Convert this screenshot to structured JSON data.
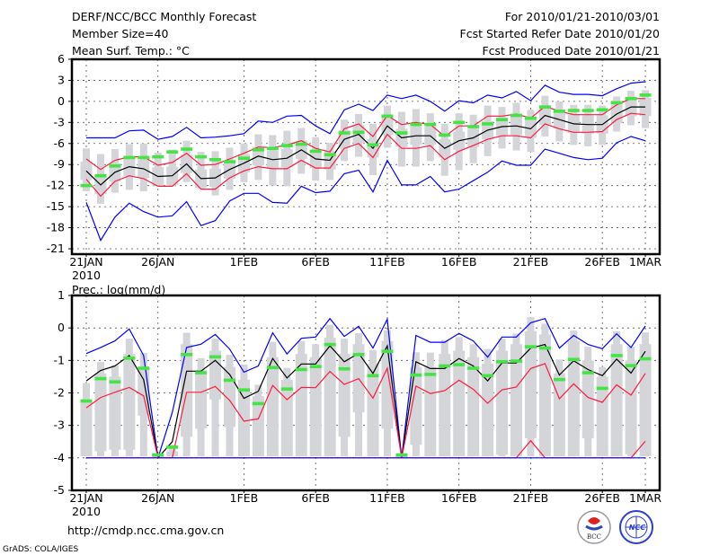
{
  "header": {
    "title": "DERF/NCC/BCC Monthly Forecast",
    "member_size": "Member Size=40",
    "variable": "Mean Surf. Temp.: °C",
    "period": "For 2010/01/21-2010/03/01",
    "started": "Fcst Started Refer Date 2010/01/20",
    "produced": "Fcst Produced Date 2010/01/21"
  },
  "footer": {
    "url": "http://cmdp.ncc.cma.gov.cn",
    "credit": "GrADS: COLA/IGES",
    "logos": [
      "BCC",
      "NCC"
    ]
  },
  "colors": {
    "max_min": "#0000ff",
    "spread": "#ff1a40",
    "mean": "#000000",
    "marker": "#44e444",
    "box": "#d3d5d8"
  },
  "chart_data": [
    {
      "type": "line",
      "title": "Mean Surf. Temp.: °C",
      "ylim": [
        -21,
        6
      ],
      "yticks": [
        "6",
        "3",
        "0",
        "-3",
        "-6",
        "-9",
        "-12",
        "-15",
        "-18",
        "-21"
      ],
      "ytick_values": [
        6,
        3,
        0,
        -3,
        -6,
        -9,
        -12,
        -15,
        -18,
        -21
      ],
      "xticks": [
        {
          "day": 0,
          "label": "21JAN"
        },
        {
          "day": 5,
          "label": "26JAN"
        },
        {
          "day": 11,
          "label": "1FEB"
        },
        {
          "day": 16,
          "label": "6FEB"
        },
        {
          "day": 21,
          "label": "11FEB"
        },
        {
          "day": 26,
          "label": "16FEB"
        },
        {
          "day": 31,
          "label": "21FEB"
        },
        {
          "day": 36,
          "label": "26FEB"
        },
        {
          "day": 39,
          "label": "1MAR"
        }
      ],
      "year_label": "2010",
      "grid": true,
      "series": [
        {
          "name": "max",
          "color": "#0000ff",
          "values": [
            -5.2,
            -5.2,
            -5.2,
            -4.2,
            -4.1,
            -5.4,
            -5.0,
            -3.7,
            -5.2,
            -5.1,
            -4.9,
            -4.6,
            -2.8,
            -3.0,
            -2.1,
            -2.0,
            -3.5,
            -4.6,
            -1.2,
            -0.4,
            -1.3,
            0.9,
            0.4,
            0.9,
            0.0,
            -1.4,
            0.1,
            -0.2,
            0.9,
            0.5,
            1.4,
            0.1,
            2.3,
            1.3,
            1.0,
            1.0,
            0.8,
            1.8,
            2.6,
            2.8
          ]
        },
        {
          "name": "upper",
          "color": "#ff1a40",
          "values": [
            -8.2,
            -9.7,
            -8.4,
            -7.9,
            -7.9,
            -9.1,
            -8.7,
            -7.4,
            -9.1,
            -9.0,
            -8.2,
            -7.4,
            -6.5,
            -6.6,
            -6.2,
            -5.6,
            -6.7,
            -7.2,
            -3.9,
            -3.2,
            -5.0,
            -2.0,
            -3.3,
            -3.0,
            -3.3,
            -5.0,
            -3.5,
            -3.5,
            -2.1,
            -2.1,
            -1.8,
            -2.4,
            -0.7,
            -1.4,
            -1.9,
            -1.9,
            -1.9,
            -0.5,
            0.4,
            0.4
          ]
        },
        {
          "name": "mean",
          "color": "#000000",
          "values": [
            -9.9,
            -11.9,
            -10.1,
            -9.3,
            -9.6,
            -10.7,
            -10.6,
            -8.9,
            -11.0,
            -10.9,
            -9.7,
            -8.8,
            -7.8,
            -8.3,
            -8.1,
            -6.9,
            -8.2,
            -8.4,
            -5.4,
            -4.7,
            -6.7,
            -3.5,
            -5.2,
            -4.9,
            -4.9,
            -6.7,
            -5.6,
            -5.2,
            -4.1,
            -3.6,
            -3.5,
            -3.9,
            -2.0,
            -2.6,
            -3.2,
            -3.3,
            -3.3,
            -1.8,
            -0.8,
            -0.8
          ]
        },
        {
          "name": "lower",
          "color": "#ff1a40",
          "values": [
            -11.1,
            -13.5,
            -11.4,
            -10.6,
            -11.0,
            -12.1,
            -12.1,
            -10.3,
            -12.5,
            -12.5,
            -10.9,
            -9.9,
            -9.3,
            -9.6,
            -9.6,
            -8.4,
            -9.5,
            -9.5,
            -6.7,
            -6.0,
            -8.0,
            -4.7,
            -6.7,
            -6.7,
            -6.3,
            -8.3,
            -7.1,
            -6.3,
            -5.4,
            -4.9,
            -4.9,
            -5.2,
            -3.2,
            -3.9,
            -4.4,
            -4.4,
            -4.3,
            -2.6,
            -1.7,
            -1.9
          ]
        },
        {
          "name": "min",
          "color": "#0000ff",
          "values": [
            -14.4,
            -19.8,
            -16.5,
            -14.5,
            -15.7,
            -16.5,
            -16.3,
            -14.3,
            -17.7,
            -17.0,
            -14.2,
            -13.1,
            -13.1,
            -14.4,
            -14.5,
            -12.1,
            -13.0,
            -12.8,
            -10.3,
            -9.8,
            -12.9,
            -8.4,
            -11.9,
            -11.9,
            -10.7,
            -12.9,
            -12.5,
            -11.3,
            -10.1,
            -8.5,
            -9.1,
            -9.1,
            -6.8,
            -7.4,
            -8.0,
            -8.3,
            -8.1,
            -5.9,
            -5.0,
            -5.6
          ]
        }
      ],
      "markers": [
        -12.0,
        -10.6,
        -9.2,
        -8.0,
        -8.0,
        -7.9,
        -7.2,
        -6.8,
        -7.9,
        -8.3,
        -8.6,
        -8.1,
        -6.9,
        -6.7,
        -6.3,
        -6.1,
        -7.1,
        -7.6,
        -4.5,
        -4.4,
        -6.2,
        -2.1,
        -4.5,
        -3.3,
        -3.3,
        -4.8,
        -3.0,
        -3.6,
        -3.2,
        -2.6,
        -2.0,
        -2.4,
        -0.8,
        -1.4,
        -1.3,
        -1.3,
        -1.2,
        -0.2,
        0.4,
        0.9
      ],
      "boxes": {
        "p90": [
          -6.7,
          -7.5,
          -6.8,
          -6.1,
          -6.0,
          -7.3,
          -6.9,
          -5.6,
          -7.2,
          -7.1,
          -6.6,
          -6.0,
          -4.7,
          -4.8,
          -4.2,
          -3.8,
          -5.1,
          -5.9,
          -2.6,
          -1.8,
          -3.2,
          -0.6,
          -1.5,
          -1.1,
          -1.7,
          -3.2,
          -1.7,
          -1.9,
          -0.6,
          -0.8,
          -0.2,
          -1.2,
          0.8,
          0.0,
          -0.5,
          -0.5,
          -0.6,
          0.7,
          1.5,
          1.6
        ],
        "p75": [
          -8.6,
          -10.6,
          -8.8,
          -8.0,
          -8.3,
          -9.4,
          -9.3,
          -7.6,
          -9.7,
          -9.6,
          -8.4,
          -7.5,
          -6.5,
          -7.0,
          -6.8,
          -5.6,
          -6.9,
          -7.1,
          -4.1,
          -3.4,
          -5.4,
          -2.2,
          -3.9,
          -3.6,
          -3.6,
          -5.4,
          -4.3,
          -3.9,
          -2.8,
          -2.3,
          -2.2,
          -2.6,
          -0.7,
          -1.3,
          -1.9,
          -2.0,
          -2.0,
          -0.5,
          0.5,
          0.5
        ],
        "p25": [
          -11.2,
          -13.2,
          -11.4,
          -10.6,
          -10.9,
          -12.0,
          -11.9,
          -10.2,
          -12.3,
          -12.2,
          -11.0,
          -10.1,
          -9.1,
          -9.6,
          -9.4,
          -8.2,
          -9.5,
          -9.7,
          -6.7,
          -6.0,
          -8.0,
          -4.8,
          -6.5,
          -6.2,
          -6.2,
          -8.0,
          -6.9,
          -6.5,
          -5.4,
          -4.9,
          -4.8,
          -5.2,
          -3.3,
          -3.9,
          -4.5,
          -4.6,
          -4.6,
          -3.1,
          -2.1,
          -2.1
        ],
        "p10": [
          -12.8,
          -14.6,
          -13.0,
          -12.6,
          -12.8,
          -12.0,
          -12.1,
          -11.5,
          -12.5,
          -13.4,
          -12.6,
          -11.5,
          -11.2,
          -12.0,
          -12.1,
          -10.3,
          -11.3,
          -11.2,
          -8.5,
          -7.9,
          -10.5,
          -6.6,
          -9.3,
          -9.3,
          -8.5,
          -10.6,
          -9.8,
          -8.8,
          -7.8,
          -6.7,
          -7.0,
          -7.2,
          -5.0,
          -5.7,
          -6.2,
          -6.4,
          -6.2,
          -4.3,
          -3.4,
          -3.8
        ]
      }
    },
    {
      "type": "line",
      "title": "Prec.: log(mm/d)",
      "ylim": [
        -5,
        1
      ],
      "yticks": [
        "1",
        "0",
        "-1",
        "-2",
        "-3",
        "-4",
        "-5"
      ],
      "ytick_values": [
        1,
        0,
        -1,
        -2,
        -3,
        -4,
        -5
      ],
      "xticks": [
        {
          "day": 0,
          "label": "21JAN"
        },
        {
          "day": 5,
          "label": "26JAN"
        },
        {
          "day": 11,
          "label": "1FEB"
        },
        {
          "day": 16,
          "label": "6FEB"
        },
        {
          "day": 21,
          "label": "11FEB"
        },
        {
          "day": 26,
          "label": "16FEB"
        },
        {
          "day": 31,
          "label": "21FEB"
        },
        {
          "day": 36,
          "label": "26FEB"
        },
        {
          "day": 39,
          "label": "1MAR"
        }
      ],
      "year_label": "2010",
      "grid": true,
      "series": [
        {
          "name": "max",
          "color": "#0000ff",
          "values": [
            -0.79,
            -0.6,
            -0.4,
            -0.03,
            -0.85,
            -4,
            -2.6,
            -0.6,
            -0.5,
            -0.2,
            -0.65,
            -1.36,
            -1.17,
            -0.15,
            -0.8,
            -0.32,
            -0.28,
            0.29,
            -0.26,
            0.05,
            -0.62,
            0.27,
            -4,
            -0.23,
            -0.44,
            -0.44,
            -0.17,
            -0.4,
            -0.9,
            -0.28,
            -0.28,
            0.16,
            0.29,
            -0.62,
            -0.23,
            -0.51,
            -0.64,
            -0.18,
            -0.6,
            0.06
          ]
        },
        {
          "name": "mean",
          "color": "#000000",
          "values": [
            -1.63,
            -1.31,
            -1.17,
            -0.85,
            -1.59,
            -4,
            -3.5,
            -1.33,
            -1.33,
            -1.0,
            -1.43,
            -2.17,
            -1.95,
            -0.94,
            -1.54,
            -1.11,
            -1.11,
            -0.55,
            -1.04,
            -0.78,
            -1.4,
            -0.55,
            -4,
            -1.04,
            -1.25,
            -1.25,
            -0.94,
            -1.17,
            -1.63,
            -1.08,
            -1.08,
            -0.62,
            -0.51,
            -1.45,
            -1.01,
            -1.28,
            -1.47,
            -0.96,
            -1.39,
            -0.72
          ]
        },
        {
          "name": "upper",
          "color": "#ff1a40",
          "values": [
            -2.46,
            -2.14,
            -1.98,
            -1.83,
            -2.09,
            -4,
            -4,
            -1.98,
            -1.98,
            -1.8,
            -2.23,
            -2.87,
            -2.8,
            -1.77,
            -2.21,
            -1.83,
            -1.84,
            -1.34,
            -1.74,
            -1.56,
            -2.16,
            -1.24,
            -4,
            -1.79,
            -2.02,
            -1.93,
            -1.61,
            -1.89,
            -2.32,
            -1.91,
            -1.82,
            -1.25,
            -1.1,
            -2.18,
            -1.72,
            -2.14,
            -2.29,
            -1.75,
            -2.07,
            -1.4
          ]
        },
        {
          "name": "lower",
          "color": "#ff1a40",
          "values": [
            -4,
            -4,
            -4,
            -4,
            -4,
            -4,
            -4,
            -4,
            -4,
            -4,
            -4,
            -4,
            -4,
            -4,
            -4,
            -4,
            -4,
            -4,
            -4,
            -4,
            -4,
            -4,
            -4,
            -4,
            -4,
            -4,
            -4,
            -4,
            -4,
            -4,
            -4,
            -3.47,
            -4,
            -4,
            -4,
            -4,
            -4,
            -4,
            -4,
            -3.49
          ]
        },
        {
          "name": "min",
          "color": "#0000ff",
          "values": [
            -4,
            -4,
            -4,
            -4,
            -4,
            -4,
            -4,
            -4,
            -4,
            -4,
            -4,
            -4,
            -4,
            -4,
            -4,
            -4,
            -4,
            -4,
            -4,
            -4,
            -4,
            -4,
            -4,
            -4,
            -4,
            -4,
            -4,
            -4,
            -4,
            -4,
            -4,
            -4,
            -4,
            -4,
            -4,
            -4,
            -4,
            -4,
            -4,
            -4
          ]
        }
      ],
      "markers": [
        -2.25,
        -1.56,
        -1.66,
        -0.93,
        -1.24,
        -3.91,
        -3.67,
        -0.82,
        -1.38,
        -0.89,
        -1.61,
        -1.91,
        -2.33,
        -1.22,
        -1.88,
        -1.28,
        -1.19,
        -0.51,
        -1.26,
        -0.82,
        -1.47,
        -0.72,
        -3.91,
        -1.45,
        -1.43,
        -1.17,
        -1.13,
        -1.24,
        -1.47,
        -1.04,
        -1.02,
        -0.58,
        -0.62,
        -1.59,
        -0.97,
        -1.38,
        -1.86,
        -0.85,
        -1.16,
        -0.95
      ],
      "boxes": {
        "p90": [
          -1.7,
          -1.05,
          -1.15,
          -0.33,
          -0.77,
          -3.95,
          -3.6,
          -0.15,
          -0.93,
          -0.33,
          -0.83,
          -1.13,
          -1.75,
          -0.43,
          -1.23,
          -0.4,
          -0.5,
          0.1,
          -0.33,
          -0.16,
          -0.68,
          -0.08,
          -3.95,
          -0.75,
          -0.76,
          -0.37,
          -0.28,
          -0.5,
          -0.65,
          -0.33,
          -0.17,
          0.33,
          0.13,
          -0.97,
          -0.08,
          -0.58,
          -1.2,
          -0.1,
          -0.58,
          -0.14
        ],
        "p75": [
          -2.2,
          -1.4,
          -1.5,
          -0.8,
          -1.2,
          -3.95,
          -3.8,
          -0.5,
          -1.3,
          -0.7,
          -1.2,
          -1.6,
          -2.1,
          -0.9,
          -1.6,
          -0.8,
          -0.9,
          -0.3,
          -0.8,
          -0.5,
          -1.1,
          -0.4,
          -3.95,
          -1.2,
          -1.2,
          -0.8,
          -0.7,
          -0.9,
          -1.1,
          -0.7,
          -0.5,
          -0.1,
          -0.2,
          -1.4,
          -0.4,
          -1.0,
          -1.5,
          -0.5,
          -1.0,
          -0.5
        ],
        "p25": [
          -3.95,
          -3.8,
          -3.75,
          -3.75,
          -2.7,
          -3.95,
          -3.95,
          -3.35,
          -3.1,
          -2.2,
          -3.05,
          -3.95,
          -3.95,
          -3.95,
          -3.95,
          -3.95,
          -3.95,
          -3.95,
          -3.35,
          -2.6,
          -3.95,
          -3.1,
          -3.95,
          -3.6,
          -3.95,
          -3.95,
          -3.95,
          -3.95,
          -3.95,
          -3.9,
          -3.95,
          -3.4,
          -3.95,
          -3.95,
          -3.95,
          -3.4,
          -3.95,
          -3.95,
          -3.9,
          -3.95
        ],
        "p10": [
          -3.95,
          -3.95,
          -3.95,
          -3.95,
          -3.95,
          -3.97,
          -3.95,
          -3.95,
          -3.95,
          -3.95,
          -3.95,
          -3.95,
          -3.95,
          -3.95,
          -3.95,
          -3.95,
          -3.95,
          -3.95,
          -3.95,
          -3.95,
          -3.95,
          -3.95,
          -3.97,
          -3.95,
          -3.95,
          -3.95,
          -3.95,
          -3.95,
          -3.95,
          -3.95,
          -3.95,
          -3.95,
          -3.95,
          -3.95,
          -3.95,
          -3.95,
          -3.95,
          -3.95,
          -3.95,
          -3.95
        ]
      }
    }
  ]
}
